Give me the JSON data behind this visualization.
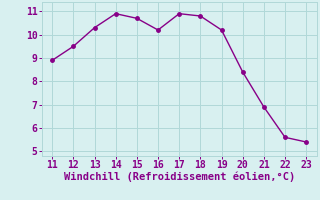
{
  "x": [
    11,
    12,
    13,
    14,
    15,
    16,
    17,
    18,
    19,
    20,
    21,
    22,
    23
  ],
  "y": [
    8.9,
    9.5,
    10.3,
    10.9,
    10.7,
    10.2,
    10.9,
    10.8,
    10.2,
    8.4,
    6.9,
    5.6,
    5.4
  ],
  "line_color": "#880088",
  "marker": "o",
  "marker_size": 2.5,
  "line_width": 1.0,
  "bg_color": "#d8f0f0",
  "grid_color": "#b0d8d8",
  "xlabel": "Windchill (Refroidissement éolien,°C)",
  "xlabel_color": "#880088",
  "xlabel_fontsize": 7.5,
  "tick_color": "#880088",
  "tick_fontsize": 7,
  "xlim": [
    10.5,
    23.5
  ],
  "ylim": [
    4.8,
    11.4
  ],
  "yticks": [
    5,
    6,
    7,
    8,
    9,
    10,
    11
  ],
  "xticks": [
    11,
    12,
    13,
    14,
    15,
    16,
    17,
    18,
    19,
    20,
    21,
    22,
    23
  ]
}
